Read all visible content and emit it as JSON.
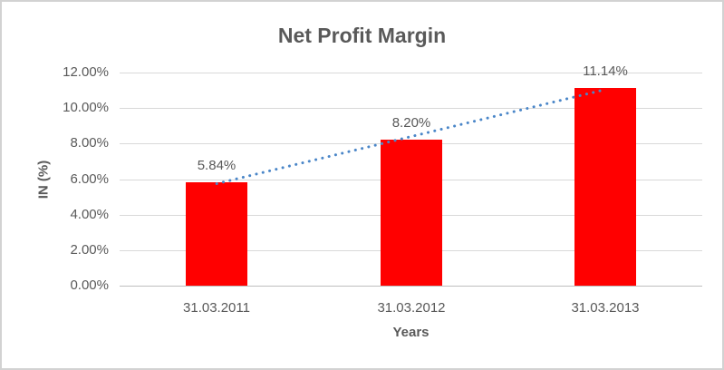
{
  "chart_data": {
    "type": "bar",
    "title": "Net Profit Margin",
    "xlabel": "Years",
    "ylabel": "IN (%)",
    "categories": [
      "31.03.2011",
      "31.03.2012",
      "31.03.2013"
    ],
    "series": [
      {
        "name": "Net Profit Margin",
        "values": [
          5.84,
          8.2,
          11.14
        ]
      }
    ],
    "data_labels": [
      "5.84%",
      "8.20%",
      "11.14%"
    ],
    "ylim": [
      0,
      12
    ],
    "ytick_step": 2,
    "ytick_labels": [
      "0.00%",
      "2.00%",
      "4.00%",
      "6.00%",
      "8.00%",
      "10.00%",
      "12.00%"
    ],
    "grid": true,
    "legend": "none",
    "trendline": {
      "type": "linear",
      "style": "dotted"
    },
    "colors": {
      "bar": "#ff0000",
      "trendline": "#4a86c8",
      "title_text": "#595959",
      "tick_text": "#595959",
      "gridline": "#d9d9d9",
      "axis_line": "#bfbfbf",
      "frame_border": "#d2d2d2",
      "background": "#ffffff"
    }
  }
}
